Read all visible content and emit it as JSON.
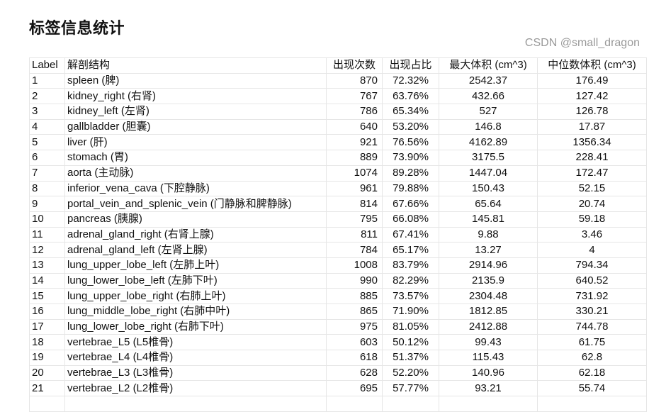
{
  "title": "标签信息统计",
  "table": {
    "headers": [
      "Label",
      "解剖结构",
      "出现次数",
      "出现占比",
      "最大体积 (cm^3)",
      "中位数体积 (cm^3)"
    ],
    "rows": [
      [
        "1",
        "spleen (脾)",
        "870",
        "72.32%",
        "2542.37",
        "176.49"
      ],
      [
        "2",
        "kidney_right (右肾)",
        "767",
        "63.76%",
        "432.66",
        "127.42"
      ],
      [
        "3",
        "kidney_left (左肾)",
        "786",
        "65.34%",
        "527",
        "126.78"
      ],
      [
        "4",
        "gallbladder (胆囊)",
        "640",
        "53.20%",
        "146.8",
        "17.87"
      ],
      [
        "5",
        "liver (肝)",
        "921",
        "76.56%",
        "4162.89",
        "1356.34"
      ],
      [
        "6",
        "stomach (胃)",
        "889",
        "73.90%",
        "3175.5",
        "228.41"
      ],
      [
        "7",
        "aorta (主动脉)",
        "1074",
        "89.28%",
        "1447.04",
        "172.47"
      ],
      [
        "8",
        "inferior_vena_cava (下腔静脉)",
        "961",
        "79.88%",
        "150.43",
        "52.15"
      ],
      [
        "9",
        "portal_vein_and_splenic_vein (门静脉和脾静脉)",
        "814",
        "67.66%",
        "65.64",
        "20.74"
      ],
      [
        "10",
        "pancreas (胰腺)",
        "795",
        "66.08%",
        "145.81",
        "59.18"
      ],
      [
        "11",
        "adrenal_gland_right (右肾上腺)",
        "811",
        "67.41%",
        "9.88",
        "3.46"
      ],
      [
        "12",
        "adrenal_gland_left (左肾上腺)",
        "784",
        "65.17%",
        "13.27",
        "4"
      ],
      [
        "13",
        "lung_upper_lobe_left (左肺上叶)",
        "1008",
        "83.79%",
        "2914.96",
        "794.34"
      ],
      [
        "14",
        "lung_lower_lobe_left (左肺下叶)",
        "990",
        "82.29%",
        "2135.9",
        "640.52"
      ],
      [
        "15",
        "lung_upper_lobe_right (右肺上叶)",
        "885",
        "73.57%",
        "2304.48",
        "731.92"
      ],
      [
        "16",
        "lung_middle_lobe_right (右肺中叶)",
        "865",
        "71.90%",
        "1812.85",
        "330.21"
      ],
      [
        "17",
        "lung_lower_lobe_right (右肺下叶)",
        "975",
        "81.05%",
        "2412.88",
        "744.78"
      ],
      [
        "18",
        "vertebrae_L5 (L5椎骨)",
        "603",
        "50.12%",
        "99.43",
        "61.75"
      ],
      [
        "19",
        "vertebrae_L4 (L4椎骨)",
        "618",
        "51.37%",
        "115.43",
        "62.8"
      ],
      [
        "20",
        "vertebrae_L3 (L3椎骨)",
        "628",
        "52.20%",
        "140.96",
        "62.18"
      ],
      [
        "21",
        "vertebrae_L2 (L2椎骨)",
        "695",
        "57.77%",
        "93.21",
        "55.74"
      ]
    ]
  },
  "watermark": "CSDN @small_dragon"
}
